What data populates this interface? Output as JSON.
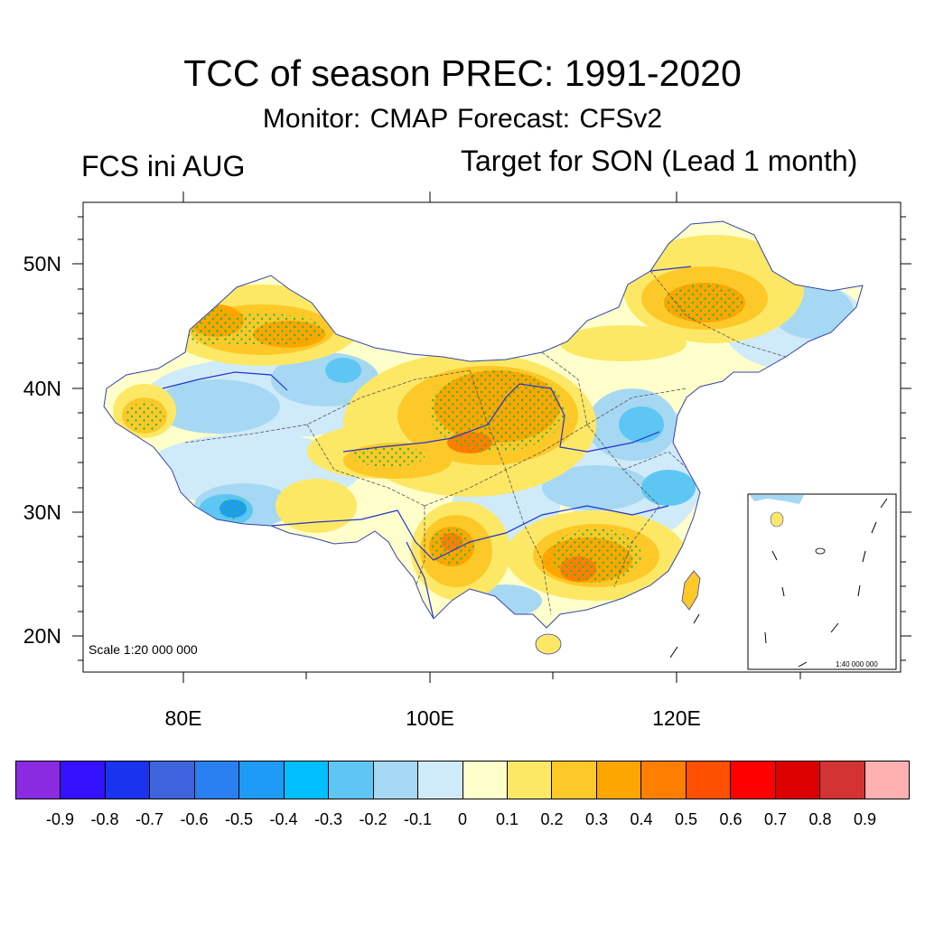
{
  "title": "TCC of season PREC: 1991-2020",
  "subtitle": "Monitor: CMAP   Forecast: CFSv2",
  "left_note": "FCS ini AUG",
  "right_note": "Target for SON (Lead 1 month)",
  "map": {
    "lat_labels": [
      "50N",
      "40N",
      "30N",
      "20N"
    ],
    "lon_labels": [
      "80E",
      "100E",
      "120E"
    ],
    "scale_note": "Scale 1:20 000 000",
    "inset_scale_note": "1:40 000 000",
    "stipple_color": "#22bb44",
    "river_color": "#2233cc",
    "boundary_color": "#555555"
  },
  "colorbar": {
    "colors": [
      "#8a2be2",
      "#3311ff",
      "#1a33ee",
      "#3d64dd",
      "#2a7ff0",
      "#1e9bf7",
      "#00bfff",
      "#5ec6f2",
      "#a6d8f3",
      "#cfeaf9",
      "#ffffcc",
      "#fde866",
      "#fdc928",
      "#fda600",
      "#fe7f00",
      "#ff4f00",
      "#ff0000",
      "#dd0000",
      "#d43333",
      "#ffb0b0"
    ],
    "labels": [
      "-0.9",
      "-0.8",
      "-0.7",
      "-0.6",
      "-0.5",
      "-0.4",
      "-0.3",
      "-0.2",
      "-0.1",
      "0",
      "0.1",
      "0.2",
      "0.3",
      "0.4",
      "0.5",
      "0.6",
      "0.7",
      "0.8",
      "0.9"
    ]
  }
}
